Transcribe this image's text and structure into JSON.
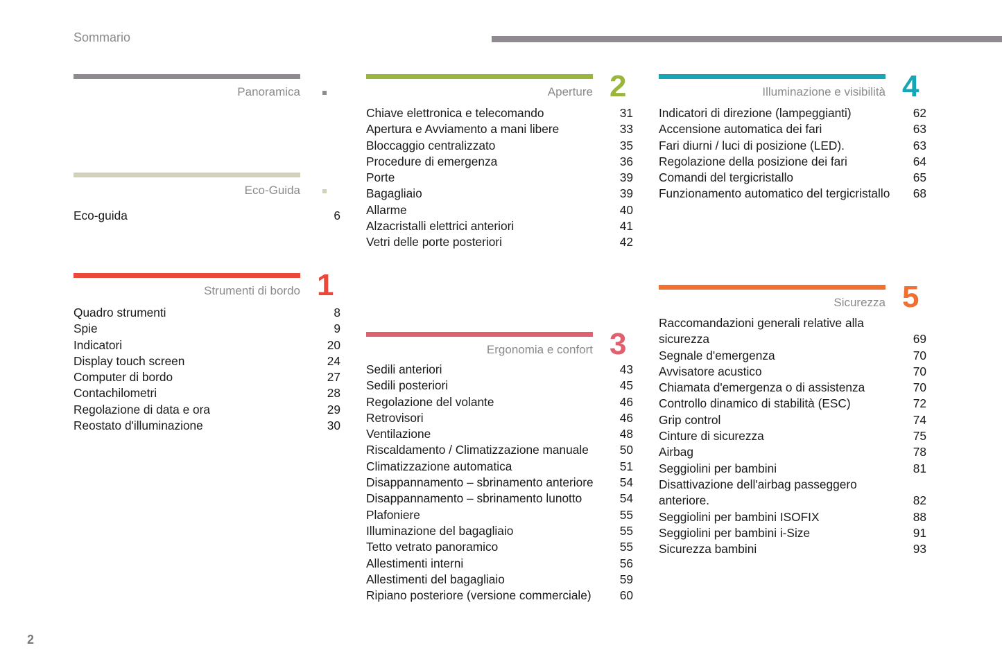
{
  "header": {
    "title": "Sommario",
    "page_number": "2"
  },
  "sections": {
    "panoramica": {
      "title": "Panoramica",
      "color": "#8f8a90",
      "entries": []
    },
    "ecoguida": {
      "title": "Eco-Guida",
      "color": "#d2d2bb",
      "entries": [
        {
          "t": "Eco-guida",
          "p": "6"
        }
      ]
    },
    "strumenti": {
      "title": "Strumenti di bordo",
      "number": "1",
      "color": "#e8493b",
      "entries": [
        {
          "t": "Quadro strumenti",
          "p": "8"
        },
        {
          "t": "Spie",
          "p": "9"
        },
        {
          "t": "Indicatori",
          "p": "20"
        },
        {
          "t": "Display touch screen",
          "p": "24"
        },
        {
          "t": "Computer di bordo",
          "p": "27"
        },
        {
          "t": "Contachilometri",
          "p": "28"
        },
        {
          "t": "Regolazione di data e ora",
          "p": "29"
        },
        {
          "t": "Reostato d'illuminazione",
          "p": "30"
        }
      ]
    },
    "aperture": {
      "title": "Aperture",
      "number": "2",
      "color": "#9ab53c",
      "entries": [
        {
          "t": "Chiave elettronica e telecomando",
          "p": "31"
        },
        {
          "t": "Apertura e Avviamento a mani libere",
          "p": "33"
        },
        {
          "t": "Bloccaggio centralizzato",
          "p": "35"
        },
        {
          "t": "Procedure di emergenza",
          "p": "36"
        },
        {
          "t": "Porte",
          "p": "39"
        },
        {
          "t": "Bagagliaio",
          "p": "39"
        },
        {
          "t": "Allarme",
          "p": "40"
        },
        {
          "t": "Alzacristalli elettrici anteriori",
          "p": "41"
        },
        {
          "t": "Vetri delle porte posteriori",
          "p": "42"
        }
      ]
    },
    "ergonomia": {
      "title": "Ergonomia e confort",
      "number": "3",
      "color": "#e0606f",
      "entries": [
        {
          "t": "Sedili anteriori",
          "p": "43"
        },
        {
          "t": "Sedili posteriori",
          "p": "45"
        },
        {
          "t": "Regolazione del volante",
          "p": "46"
        },
        {
          "t": "Retrovisori",
          "p": "46"
        },
        {
          "t": "Ventilazione",
          "p": "48"
        },
        {
          "t": "Riscaldamento / Climatizzazione manuale",
          "p": "50"
        },
        {
          "t": "Climatizzazione automatica",
          "p": "51"
        },
        {
          "t": "Disappannamento – sbrinamento anteriore",
          "p": "54"
        },
        {
          "t": "Disappannamento – sbrinamento lunotto",
          "p": "54"
        },
        {
          "t": "Plafoniere",
          "p": "55"
        },
        {
          "t": "Illuminazione del bagagliaio",
          "p": "55"
        },
        {
          "t": "Tetto vetrato panoramico",
          "p": "55"
        },
        {
          "t": "Allestimenti interni",
          "p": "56"
        },
        {
          "t": "Allestimenti del bagagliaio",
          "p": "59"
        },
        {
          "t": "Ripiano posteriore (versione commerciale)",
          "p": "60"
        }
      ]
    },
    "illuminazione": {
      "title": "Illuminazione e visibilità",
      "number": "4",
      "color": "#17a6b6",
      "entries": [
        {
          "t": "Indicatori di direzione (lampeggianti)",
          "p": "62"
        },
        {
          "t": "Accensione automatica dei fari",
          "p": "63"
        },
        {
          "t": "Fari diurni / luci di posizione (LED).",
          "p": "63"
        },
        {
          "t": "Regolazione della posizione dei fari",
          "p": "64"
        },
        {
          "t": "Comandi del tergicristallo",
          "p": "65"
        },
        {
          "t": "Funzionamento automatico del tergicristallo",
          "p": "68"
        }
      ]
    },
    "sicurezza": {
      "title": "Sicurezza",
      "number": "5",
      "color": "#f07032",
      "entries": [
        {
          "t": "Raccomandazioni generali relative alla sicurezza",
          "p": "69"
        },
        {
          "t": "Segnale d'emergenza",
          "p": "70"
        },
        {
          "t": "Avvisatore acustico",
          "p": "70"
        },
        {
          "t": "Chiamata d'emergenza o di assistenza",
          "p": "70"
        },
        {
          "t": "Controllo dinamico di stabilità (ESC)",
          "p": "72"
        },
        {
          "t": "Grip control",
          "p": "74"
        },
        {
          "t": "Cinture di sicurezza",
          "p": "75"
        },
        {
          "t": "Airbag",
          "p": "78"
        },
        {
          "t": "Seggiolini per bambini",
          "p": "81"
        },
        {
          "t": "Disattivazione dell'airbag passeggero anteriore.",
          "p": "82"
        },
        {
          "t": "Seggiolini per bambini ISOFIX",
          "p": "88"
        },
        {
          "t": "Seggiolini per bambini i-Size",
          "p": "91"
        },
        {
          "t": "Sicurezza bambini",
          "p": "93"
        }
      ]
    }
  }
}
